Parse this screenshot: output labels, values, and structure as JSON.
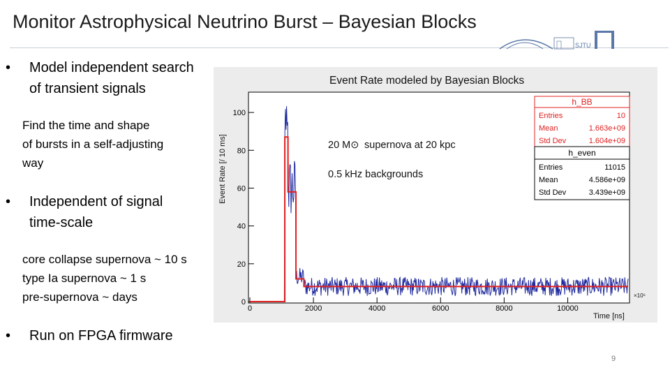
{
  "slide": {
    "title": "Monitor Astrophysical Neutrino Burst – Bayesian Blocks",
    "bullet_char": "•",
    "bullets": [
      {
        "text_lines": [
          "Model independent search",
          "of transient signals"
        ]
      },
      {
        "text_lines": [
          "Independent of signal",
          "time-scale"
        ]
      },
      {
        "text_lines": [
          "Run on FPGA firmware"
        ]
      }
    ],
    "sub_text_1": [
      "Find the time and shape",
      "of bursts in a self-adjusting",
      "way"
    ],
    "sub_text_2": [
      "core collapse supernova ~ 10 s",
      "type Ia supernova ~ 1 s",
      "pre-supernova ~ days"
    ],
    "page_number": "9",
    "logo_text": "SJTU"
  },
  "chart_data": {
    "type": "line",
    "title": "Event Rate modeled by Bayesian Blocks",
    "xlabel": "Time [ns]",
    "ylabel": "Event Rate [/ 10 ms]",
    "x_exponent_label": "×10⁶",
    "xlim": [
      0,
      11900
    ],
    "ylim": [
      0,
      110
    ],
    "x_ticks": [
      0,
      2000,
      4000,
      6000,
      8000,
      10000
    ],
    "y_ticks": [
      0,
      20,
      40,
      60,
      80,
      100
    ],
    "annotations": [
      "supernova at 20 kpc",
      "0.5 kHz backgrounds"
    ],
    "annotation_mass": "20 M⊙",
    "series": [
      {
        "name": "h_even",
        "color": "#1f2a9e",
        "note": "noisy histogram: baseline ~8, burst rising to ~100 around x=1150-1450"
      },
      {
        "name": "h_BB",
        "color": "#e02020",
        "blocks": [
          {
            "x0": 0,
            "x1": 1100,
            "y": 0
          },
          {
            "x0": 1100,
            "x1": 1200,
            "y": 87
          },
          {
            "x0": 1200,
            "x1": 1450,
            "y": 58
          },
          {
            "x0": 1450,
            "x1": 1700,
            "y": 12
          },
          {
            "x0": 1700,
            "x1": 11900,
            "y": 8
          }
        ]
      }
    ],
    "stats": [
      {
        "name": "h_BB",
        "entries": "10",
        "mean": "1.663e+09",
        "std_dev": "1.604e+09"
      },
      {
        "name": "h_even",
        "entries": "11015",
        "mean": "4.586e+09",
        "std_dev": "3.439e+09"
      }
    ],
    "stats_labels": {
      "entries": "Entries",
      "mean": "Mean",
      "std_dev": "Std Dev"
    },
    "grid": false,
    "legend": "top-right"
  }
}
